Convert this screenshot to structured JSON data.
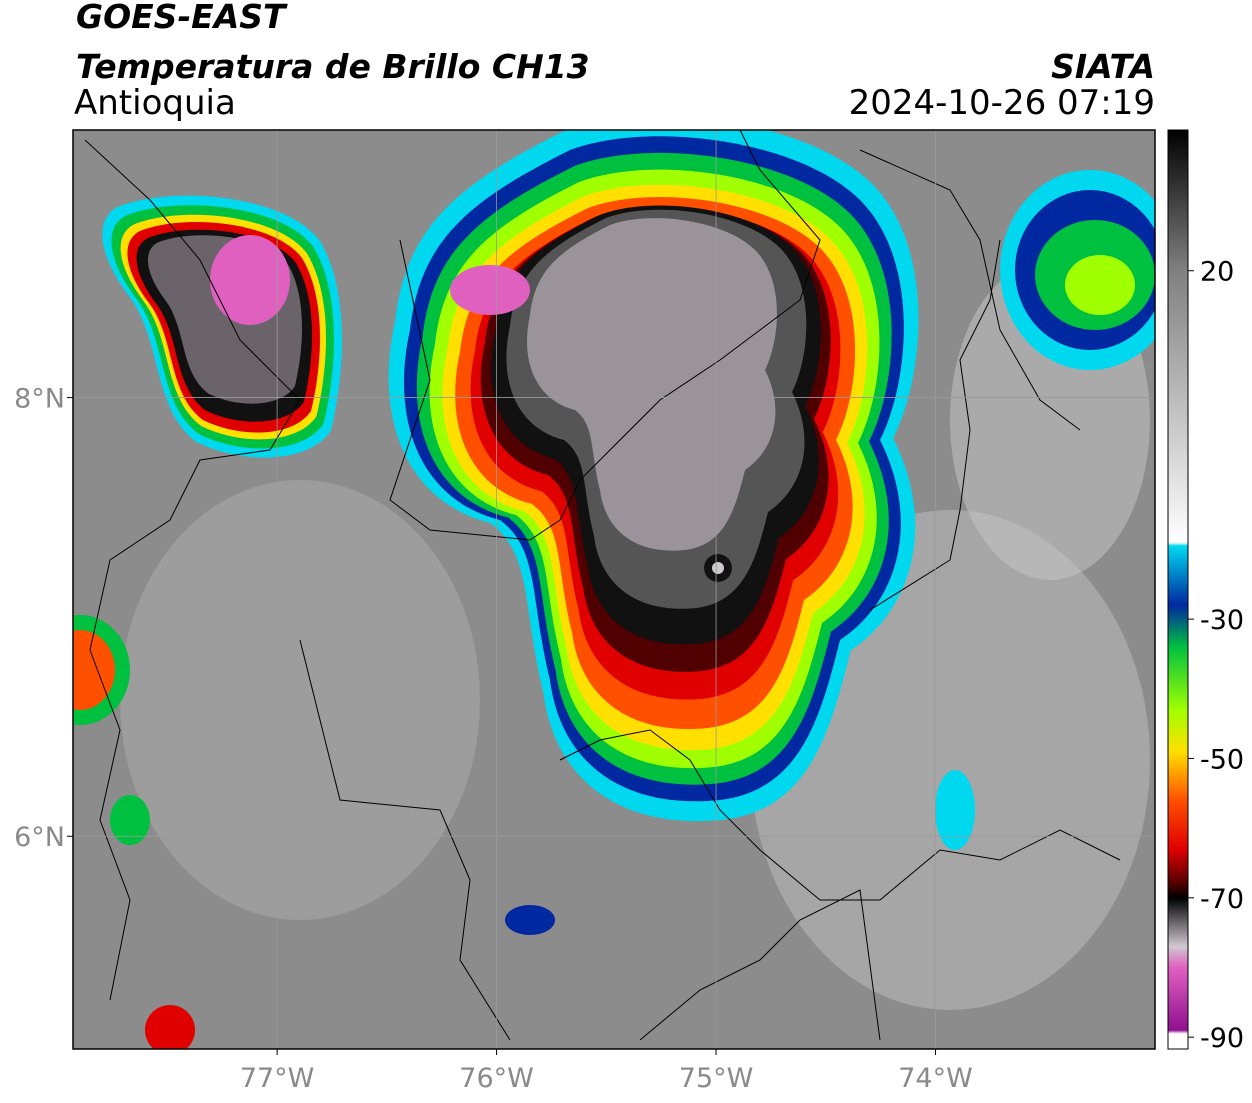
{
  "header": {
    "title": "GOES-EAST",
    "subtitle": "Temperatura de Brillo CH13",
    "region": "Antioquia",
    "source": "SIATA",
    "datetime": "2024-10-26 07:19"
  },
  "map": {
    "lonlim": [
      -77.93,
      -73
    ],
    "latlim": [
      5.03,
      9.22
    ],
    "grid": true,
    "grid_color": "#9a9a9a",
    "background": "#8c8c8c",
    "lon_ticks": [
      {
        "value": -77,
        "label": "77°W"
      },
      {
        "value": -76,
        "label": "76°W"
      },
      {
        "value": -75,
        "label": "75°W"
      },
      {
        "value": -74,
        "label": "74°W"
      }
    ],
    "lat_ticks": [
      {
        "value": 8,
        "label": "8°N"
      },
      {
        "value": 6,
        "label": "6°N"
      }
    ]
  },
  "colorbar": {
    "clim": [
      -91.7,
      40.2
    ],
    "ticks": [
      20,
      -30,
      -50,
      -70,
      -90
    ],
    "colormap": [
      {
        "value": 40.2,
        "color": "#000000"
      },
      {
        "value": 20,
        "color": "#808080"
      },
      {
        "value": -19,
        "color": "#ffffff"
      },
      {
        "value": -19.5,
        "color": "#00d8f0"
      },
      {
        "value": -28,
        "color": "#0028a0"
      },
      {
        "value": -34,
        "color": "#00c040"
      },
      {
        "value": -43,
        "color": "#a0ff00"
      },
      {
        "value": -49,
        "color": "#ffe000"
      },
      {
        "value": -56,
        "color": "#ff5000"
      },
      {
        "value": -63,
        "color": "#e00000"
      },
      {
        "value": -68,
        "color": "#500000"
      },
      {
        "value": -70,
        "color": "#000000"
      },
      {
        "value": -77,
        "color": "#d0c8d0"
      },
      {
        "value": -80,
        "color": "#e060c0"
      },
      {
        "value": -89,
        "color": "#901090"
      },
      {
        "value": -89.5,
        "color": "#ffffff"
      }
    ]
  }
}
